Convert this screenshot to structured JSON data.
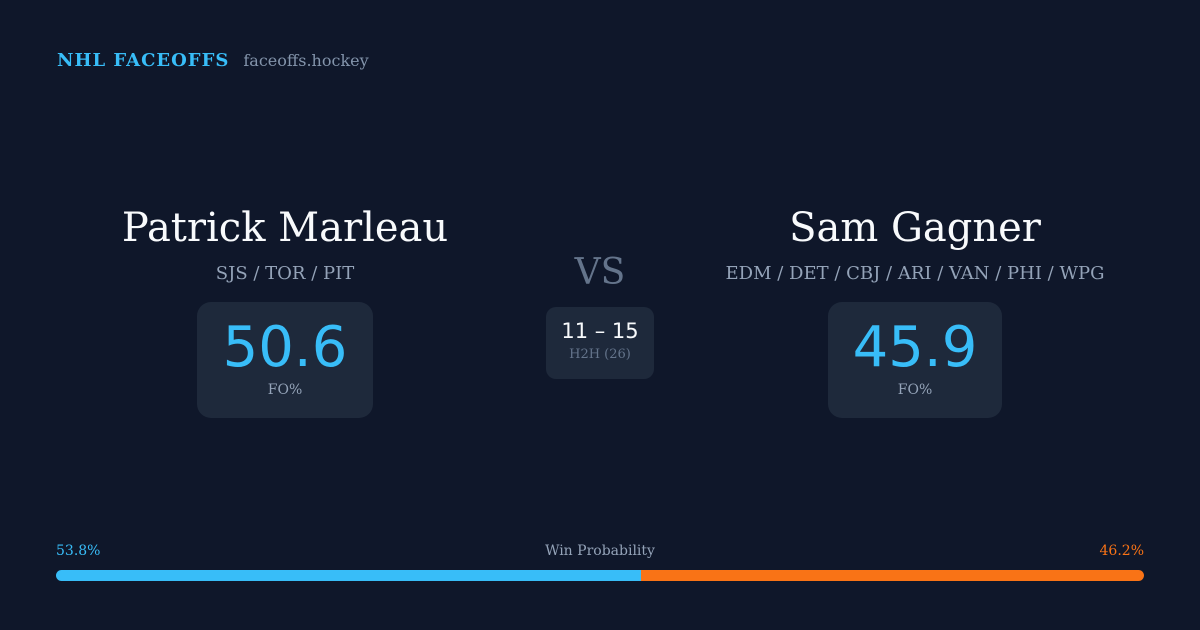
{
  "brand": {
    "title": "NHL FACEOFFS",
    "url": "faceoffs.hockey"
  },
  "player1": {
    "name": "Patrick Marleau",
    "teams": "SJS / TOR / PIT",
    "fo_pct": "50.6",
    "fo_label": "FO%"
  },
  "player2": {
    "name": "Sam Gagner",
    "teams": "EDM / DET / CBJ / ARI / VAN / PHI / WPG",
    "fo_pct": "45.9",
    "fo_label": "FO%"
  },
  "vs": "VS",
  "h2h": {
    "score": "11 – 15",
    "label": "H2H (26)"
  },
  "win_probability": {
    "label": "Win Probability",
    "left": "53.8%",
    "right": "46.2%",
    "left_value": 53.8,
    "right_value": 46.2,
    "left_color": "#38bdf8",
    "right_color": "#f97316"
  }
}
